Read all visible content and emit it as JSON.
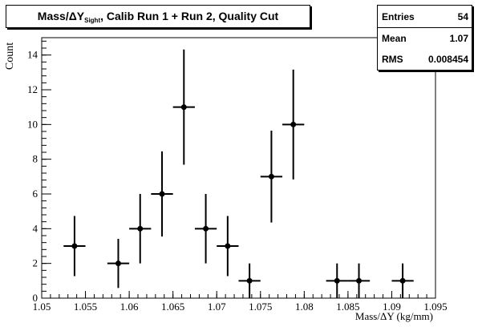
{
  "title": {
    "main_prefix": "Mass/ΔY",
    "subscript": "Sight",
    "main_suffix": ", Calib Run 1 + Run 2, Quality Cut"
  },
  "stats": {
    "entries_label": "Entries",
    "entries_value": "54",
    "mean_label": "Mean",
    "mean_value": "1.07",
    "rms_label": "RMS",
    "rms_value": "0.008454"
  },
  "chart_data": {
    "type": "scatter",
    "xlabel": "Mass/ΔY (kg/mm)",
    "ylabel": "Count",
    "xlim": [
      1.05,
      1.095
    ],
    "ylim": [
      0,
      15
    ],
    "x_ticks": [
      "1.05",
      "1.055",
      "1.06",
      "1.065",
      "1.07",
      "1.075",
      "1.08",
      "1.085",
      "1.09",
      "1.095"
    ],
    "x_tick_values": [
      1.05,
      1.055,
      1.06,
      1.065,
      1.07,
      1.075,
      1.08,
      1.085,
      1.09,
      1.095
    ],
    "y_ticks": [
      "0",
      "2",
      "4",
      "6",
      "8",
      "10",
      "12",
      "14"
    ],
    "y_tick_values": [
      0,
      2,
      4,
      6,
      8,
      10,
      12,
      14
    ],
    "bin_width": 0.0025,
    "points": [
      {
        "x": 1.05375,
        "y": 3
      },
      {
        "x": 1.05875,
        "y": 2
      },
      {
        "x": 1.06125,
        "y": 4
      },
      {
        "x": 1.06375,
        "y": 6
      },
      {
        "x": 1.06625,
        "y": 11
      },
      {
        "x": 1.06875,
        "y": 4
      },
      {
        "x": 1.07125,
        "y": 3
      },
      {
        "x": 1.07375,
        "y": 1
      },
      {
        "x": 1.07625,
        "y": 7
      },
      {
        "x": 1.07875,
        "y": 10
      },
      {
        "x": 1.08375,
        "y": 1
      },
      {
        "x": 1.08625,
        "y": 1
      },
      {
        "x": 1.09125,
        "y": 1
      }
    ],
    "error_bars": "sqrt(N)",
    "grid": false
  },
  "colors": {
    "marker": "#000000",
    "axis": "#000000",
    "background": "#ffffff"
  }
}
